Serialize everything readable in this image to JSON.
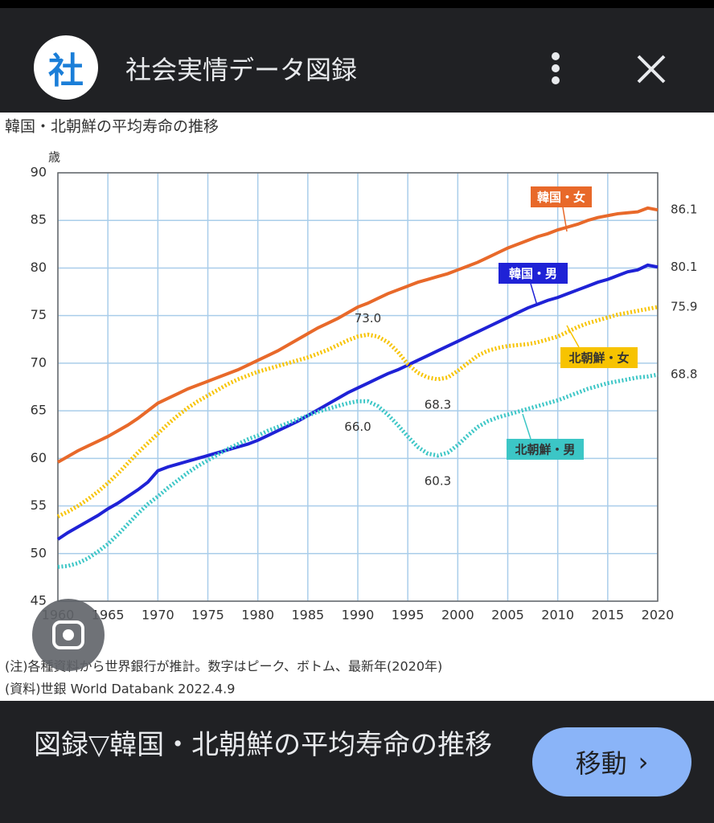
{
  "header": {
    "logo": "社",
    "title": "社会実情データ図録"
  },
  "chart_data": {
    "type": "line",
    "title": "韓国・北朝鮮の平均寿命の推移",
    "y_label": "歳",
    "x": [
      1960,
      1961,
      1962,
      1963,
      1964,
      1965,
      1966,
      1967,
      1968,
      1969,
      1970,
      1971,
      1972,
      1973,
      1974,
      1975,
      1976,
      1977,
      1978,
      1979,
      1980,
      1981,
      1982,
      1983,
      1984,
      1985,
      1986,
      1987,
      1988,
      1989,
      1990,
      1991,
      1992,
      1993,
      1994,
      1995,
      1996,
      1997,
      1998,
      1999,
      2000,
      2001,
      2002,
      2003,
      2004,
      2005,
      2006,
      2007,
      2008,
      2009,
      2010,
      2011,
      2012,
      2013,
      2014,
      2015,
      2016,
      2017,
      2018,
      2019,
      2020
    ],
    "xlim": [
      1960,
      2020
    ],
    "xticks": [
      1960,
      1965,
      1970,
      1975,
      1980,
      1985,
      1990,
      1995,
      2000,
      2005,
      2010,
      2015,
      2020
    ],
    "ylim": [
      45,
      90
    ],
    "yticks": [
      45,
      50,
      55,
      60,
      65,
      70,
      75,
      80,
      85,
      90
    ],
    "grid": true,
    "series": [
      {
        "name": "韓国・女",
        "color": "#e8692a",
        "style": "solid",
        "values": [
          59.6,
          60.2,
          60.8,
          61.3,
          61.8,
          62.3,
          62.9,
          63.5,
          64.2,
          65.0,
          65.8,
          66.3,
          66.8,
          67.3,
          67.7,
          68.1,
          68.5,
          68.9,
          69.3,
          69.8,
          70.3,
          70.8,
          71.3,
          71.9,
          72.5,
          73.1,
          73.7,
          74.2,
          74.7,
          75.3,
          75.9,
          76.3,
          76.8,
          77.3,
          77.7,
          78.1,
          78.5,
          78.8,
          79.1,
          79.4,
          79.8,
          80.2,
          80.6,
          81.1,
          81.6,
          82.1,
          82.5,
          82.9,
          83.3,
          83.6,
          84.0,
          84.3,
          84.6,
          85.0,
          85.3,
          85.5,
          85.7,
          85.8,
          85.9,
          86.3,
          86.1
        ],
        "value_labels": [
          null,
          null,
          null,
          null,
          null,
          null,
          null,
          null,
          null,
          null,
          null,
          null,
          null,
          null,
          null,
          null,
          null,
          null,
          null,
          null,
          null,
          null,
          null,
          null,
          null,
          null,
          null,
          null,
          null,
          null,
          null,
          null,
          null,
          null,
          null,
          null,
          null,
          null,
          null,
          null,
          null,
          null,
          null,
          null,
          null,
          null,
          null,
          null,
          null,
          null,
          null,
          null,
          null,
          null,
          null,
          null,
          null,
          null,
          null,
          null,
          "86.1"
        ]
      },
      {
        "name": "韓国・男",
        "color": "#1f22d6",
        "style": "solid",
        "values": [
          51.5,
          52.2,
          52.8,
          53.4,
          54.0,
          54.7,
          55.3,
          56.0,
          56.7,
          57.5,
          58.7,
          59.1,
          59.4,
          59.7,
          60.0,
          60.3,
          60.6,
          60.9,
          61.2,
          61.5,
          61.9,
          62.4,
          62.9,
          63.4,
          63.9,
          64.5,
          65.1,
          65.7,
          66.3,
          66.9,
          67.4,
          67.9,
          68.4,
          68.9,
          69.3,
          69.8,
          70.3,
          70.8,
          71.3,
          71.8,
          72.3,
          72.8,
          73.3,
          73.8,
          74.3,
          74.8,
          75.3,
          75.8,
          76.2,
          76.6,
          76.9,
          77.3,
          77.7,
          78.1,
          78.5,
          78.8,
          79.2,
          79.6,
          79.8,
          80.3,
          80.1
        ],
        "value_labels": [
          null,
          null,
          null,
          null,
          null,
          null,
          null,
          null,
          null,
          null,
          null,
          null,
          null,
          null,
          null,
          null,
          null,
          null,
          null,
          null,
          null,
          null,
          null,
          null,
          null,
          null,
          null,
          null,
          null,
          null,
          null,
          null,
          null,
          null,
          null,
          null,
          null,
          null,
          null,
          null,
          null,
          null,
          null,
          null,
          null,
          null,
          null,
          null,
          null,
          null,
          null,
          null,
          null,
          null,
          null,
          null,
          null,
          null,
          null,
          null,
          "80.1"
        ]
      },
      {
        "name": "北朝鮮・女",
        "color": "#f7c300",
        "style": "dotted",
        "values": [
          53.9,
          54.4,
          55.0,
          55.7,
          56.5,
          57.4,
          58.4,
          59.5,
          60.6,
          61.6,
          62.6,
          63.6,
          64.5,
          65.3,
          66.0,
          66.6,
          67.2,
          67.8,
          68.3,
          68.7,
          69.1,
          69.4,
          69.7,
          70.0,
          70.3,
          70.6,
          71.0,
          71.4,
          71.9,
          72.4,
          72.8,
          73.0,
          72.8,
          72.2,
          71.2,
          69.9,
          69.0,
          68.5,
          68.3,
          68.5,
          69.2,
          70.0,
          70.8,
          71.3,
          71.6,
          71.8,
          71.9,
          72.0,
          72.2,
          72.5,
          72.8,
          73.3,
          73.8,
          74.2,
          74.5,
          74.8,
          75.1,
          75.3,
          75.5,
          75.7,
          75.9
        ],
        "value_labels": [
          null,
          null,
          null,
          null,
          null,
          null,
          null,
          null,
          null,
          null,
          null,
          null,
          null,
          null,
          null,
          null,
          null,
          null,
          null,
          null,
          null,
          null,
          null,
          null,
          null,
          null,
          null,
          null,
          null,
          null,
          null,
          "73.0",
          null,
          null,
          null,
          null,
          null,
          null,
          "68.3",
          null,
          null,
          null,
          null,
          null,
          null,
          null,
          null,
          null,
          null,
          null,
          null,
          null,
          null,
          null,
          null,
          null,
          null,
          null,
          null,
          null,
          "75.9"
        ]
      },
      {
        "name": "北朝鮮・男",
        "color": "#3cc6c6",
        "style": "dotted",
        "values": [
          48.6,
          48.7,
          49.0,
          49.5,
          50.2,
          51.0,
          52.0,
          53.1,
          54.2,
          55.2,
          56.0,
          56.9,
          57.7,
          58.5,
          59.2,
          59.8,
          60.4,
          61.0,
          61.5,
          62.0,
          62.4,
          62.9,
          63.3,
          63.7,
          64.1,
          64.5,
          64.9,
          65.2,
          65.5,
          65.8,
          66.0,
          66.0,
          65.5,
          64.6,
          63.5,
          62.3,
          61.2,
          60.5,
          60.3,
          60.6,
          61.4,
          62.4,
          63.3,
          63.9,
          64.3,
          64.6,
          64.9,
          65.2,
          65.5,
          65.8,
          66.1,
          66.5,
          66.9,
          67.3,
          67.6,
          67.9,
          68.1,
          68.3,
          68.5,
          68.6,
          68.8
        ],
        "value_labels": [
          null,
          null,
          null,
          null,
          null,
          null,
          null,
          null,
          null,
          null,
          null,
          null,
          null,
          null,
          null,
          null,
          null,
          null,
          null,
          null,
          null,
          null,
          null,
          null,
          null,
          null,
          null,
          null,
          null,
          null,
          "66.0",
          null,
          null,
          null,
          null,
          null,
          null,
          null,
          "60.3",
          null,
          null,
          null,
          null,
          null,
          null,
          null,
          null,
          null,
          null,
          null,
          null,
          null,
          null,
          null,
          null,
          null,
          null,
          null,
          null,
          null,
          "68.8"
        ]
      }
    ],
    "notes": [
      "(注)各種資料から世界銀行が推計。数字はピーク、ボトム、最新年(2020年)",
      "(資料)世銀 World Databank 2022.4.9"
    ]
  },
  "card": {
    "title": "図録▽韓国・北朝鮮の平均寿命の推移",
    "button": "移動"
  }
}
